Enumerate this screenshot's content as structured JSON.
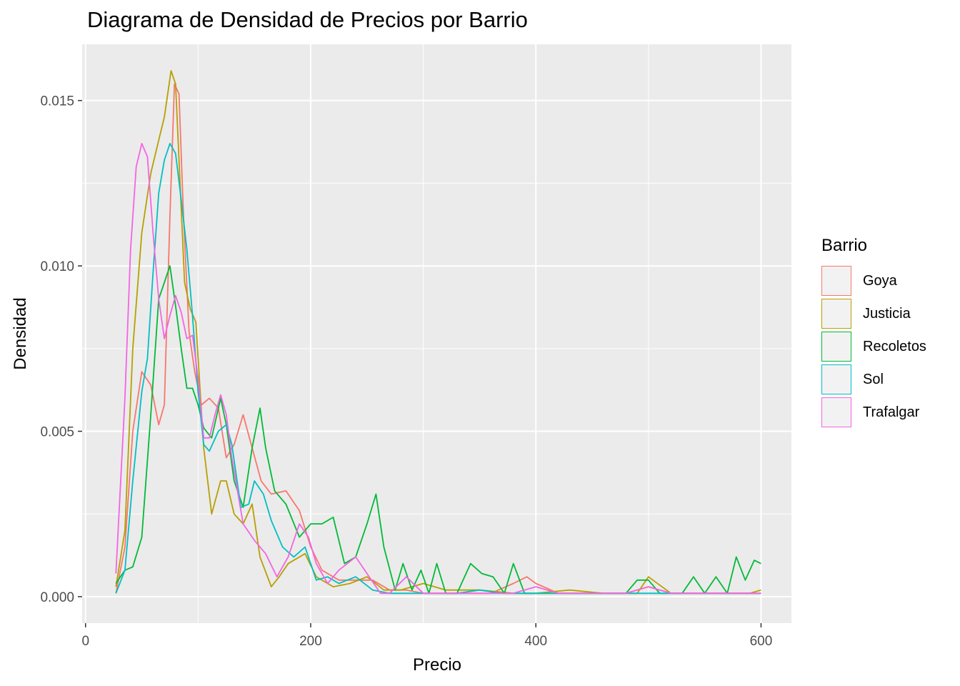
{
  "chart_data": {
    "type": "line",
    "title": "Diagrama de Densidad de Precios por Barrio",
    "xlabel": "Precio",
    "ylabel": "Densidad",
    "xlim": [
      -3,
      627
    ],
    "ylim": [
      -0.0008,
      0.0167
    ],
    "x_ticks": [
      0,
      200,
      400,
      600
    ],
    "x_tick_labels": [
      "0",
      "200",
      "400",
      "600"
    ],
    "y_ticks": [
      0.0,
      0.005,
      0.01,
      0.015
    ],
    "y_tick_labels": [
      "0.000",
      "0.005",
      "0.010",
      "0.015"
    ],
    "grid": true,
    "legend_title": "Barrio",
    "legend_position": "right",
    "series": [
      {
        "name": "Goya",
        "color": "#F8766D",
        "x": [
          27,
          35,
          42,
          50,
          58,
          65,
          70,
          75,
          79,
          83,
          87,
          92,
          97,
          103,
          110,
          118,
          125,
          132,
          140,
          148,
          156,
          165,
          178,
          190,
          200,
          210,
          225,
          240,
          255,
          270,
          285,
          300,
          320,
          340,
          360,
          380,
          392,
          400,
          420,
          450,
          480,
          500,
          520,
          560,
          600
        ],
        "y": [
          0.0001,
          0.0015,
          0.005,
          0.0068,
          0.0064,
          0.0052,
          0.0058,
          0.0115,
          0.0155,
          0.0152,
          0.0115,
          0.008,
          0.0068,
          0.0058,
          0.006,
          0.0057,
          0.0042,
          0.0046,
          0.0055,
          0.0045,
          0.0035,
          0.0031,
          0.0032,
          0.0026,
          0.0015,
          0.0008,
          0.0005,
          0.0005,
          0.0005,
          0.0002,
          0.0002,
          0.0001,
          0.0001,
          0.0001,
          0.0001,
          0.0004,
          0.0006,
          0.0004,
          0.0001,
          0.0001,
          0.0001,
          0.0003,
          0.0001,
          0.0001,
          0.0001
        ]
      },
      {
        "name": "Justicia",
        "color": "#B79F00",
        "x": [
          27,
          35,
          42,
          50,
          58,
          65,
          70,
          76,
          80,
          84,
          88,
          93,
          98,
          105,
          112,
          120,
          125,
          132,
          140,
          148,
          155,
          165,
          172,
          180,
          195,
          205,
          220,
          235,
          250,
          265,
          280,
          300,
          320,
          350,
          380,
          400,
          430,
          460,
          490,
          500,
          520,
          560,
          590,
          600
        ],
        "y": [
          0.0003,
          0.002,
          0.0075,
          0.011,
          0.0128,
          0.0138,
          0.0145,
          0.0159,
          0.0155,
          0.0125,
          0.0095,
          0.0087,
          0.0083,
          0.0045,
          0.0025,
          0.0035,
          0.0035,
          0.0025,
          0.0022,
          0.0028,
          0.0012,
          0.0003,
          0.0006,
          0.001,
          0.0013,
          0.0006,
          0.0003,
          0.0004,
          0.0006,
          0.0002,
          0.0002,
          0.0004,
          0.0002,
          0.0002,
          0.0001,
          0.0001,
          0.0002,
          0.0001,
          0.0001,
          0.0006,
          0.0001,
          0.0001,
          0.0001,
          0.0002
        ]
      },
      {
        "name": "Recoletos",
        "color": "#00BA38",
        "x": [
          27,
          35,
          42,
          50,
          58,
          65,
          70,
          75,
          80,
          85,
          90,
          95,
          100,
          105,
          112,
          120,
          125,
          132,
          140,
          148,
          155,
          160,
          168,
          178,
          190,
          200,
          210,
          220,
          230,
          240,
          250,
          258,
          265,
          275,
          282,
          290,
          298,
          305,
          312,
          320,
          330,
          342,
          352,
          362,
          372,
          380,
          390,
          400,
          420,
          450,
          480,
          490,
          500,
          510,
          520,
          530,
          540,
          550,
          560,
          570,
          578,
          586,
          594,
          600
        ],
        "y": [
          0.0004,
          0.0008,
          0.0009,
          0.0018,
          0.0055,
          0.009,
          0.0095,
          0.01,
          0.0088,
          0.0075,
          0.0063,
          0.0063,
          0.0058,
          0.0051,
          0.0048,
          0.006,
          0.0052,
          0.0035,
          0.0027,
          0.0045,
          0.0057,
          0.0045,
          0.0032,
          0.0028,
          0.0018,
          0.0022,
          0.0022,
          0.0024,
          0.001,
          0.0012,
          0.0022,
          0.0031,
          0.0015,
          0.0002,
          0.001,
          0.0002,
          0.0008,
          0.0001,
          0.001,
          0.0001,
          0.0001,
          0.001,
          0.0007,
          0.0006,
          0.0001,
          0.001,
          0.0001,
          0.0001,
          0.0001,
          0.0001,
          0.0001,
          0.0005,
          0.0005,
          0.0001,
          0.0001,
          0.0001,
          0.0006,
          0.0001,
          0.0006,
          0.0001,
          0.0012,
          0.0005,
          0.0011,
          0.001
        ]
      },
      {
        "name": "Sol",
        "color": "#00BFC4",
        "x": [
          27,
          35,
          42,
          50,
          55,
          60,
          65,
          70,
          75,
          80,
          85,
          90,
          95,
          100,
          105,
          110,
          118,
          125,
          130,
          138,
          145,
          150,
          158,
          165,
          175,
          185,
          195,
          205,
          215,
          225,
          240,
          255,
          270,
          290,
          310,
          330,
          350,
          370,
          390,
          400,
          420,
          450,
          480,
          500,
          520,
          560,
          600
        ],
        "y": [
          0.0001,
          0.0008,
          0.0035,
          0.0062,
          0.0072,
          0.0098,
          0.0122,
          0.0132,
          0.0137,
          0.0134,
          0.012,
          0.0105,
          0.0085,
          0.0062,
          0.0046,
          0.0044,
          0.005,
          0.0052,
          0.0046,
          0.0027,
          0.0028,
          0.0035,
          0.0031,
          0.0023,
          0.0015,
          0.0012,
          0.0015,
          0.0005,
          0.0006,
          0.0004,
          0.0006,
          0.0002,
          0.0001,
          0.0001,
          0.0001,
          0.0001,
          0.0002,
          0.0001,
          0.0001,
          0.0001,
          0.0001,
          0.0001,
          0.0001,
          0.0001,
          0.0001,
          0.0001,
          0.0001
        ]
      },
      {
        "name": "Trafalgar",
        "color": "#F564E3",
        "x": [
          27,
          35,
          40,
          45,
          50,
          55,
          60,
          65,
          70,
          75,
          80,
          85,
          90,
          95,
          100,
          105,
          110,
          115,
          120,
          125,
          130,
          135,
          140,
          150,
          160,
          170,
          180,
          190,
          198,
          205,
          215,
          225,
          240,
          252,
          262,
          270,
          285,
          300,
          320,
          350,
          380,
          400,
          420,
          450,
          480,
          500,
          520,
          560,
          600
        ],
        "y": [
          0.0007,
          0.006,
          0.0105,
          0.013,
          0.0137,
          0.0133,
          0.011,
          0.009,
          0.0078,
          0.0085,
          0.0091,
          0.0086,
          0.0078,
          0.0079,
          0.0066,
          0.0048,
          0.0048,
          0.0055,
          0.0061,
          0.0055,
          0.0042,
          0.0032,
          0.0022,
          0.0017,
          0.0013,
          0.0006,
          0.0012,
          0.0022,
          0.0018,
          0.001,
          0.0004,
          0.0008,
          0.0012,
          0.0006,
          0.0001,
          0.0001,
          0.0006,
          0.0001,
          0.0001,
          0.0001,
          0.0001,
          0.0003,
          0.0001,
          0.0001,
          0.0001,
          0.0003,
          0.0001,
          0.0001,
          0.0001
        ]
      }
    ]
  }
}
